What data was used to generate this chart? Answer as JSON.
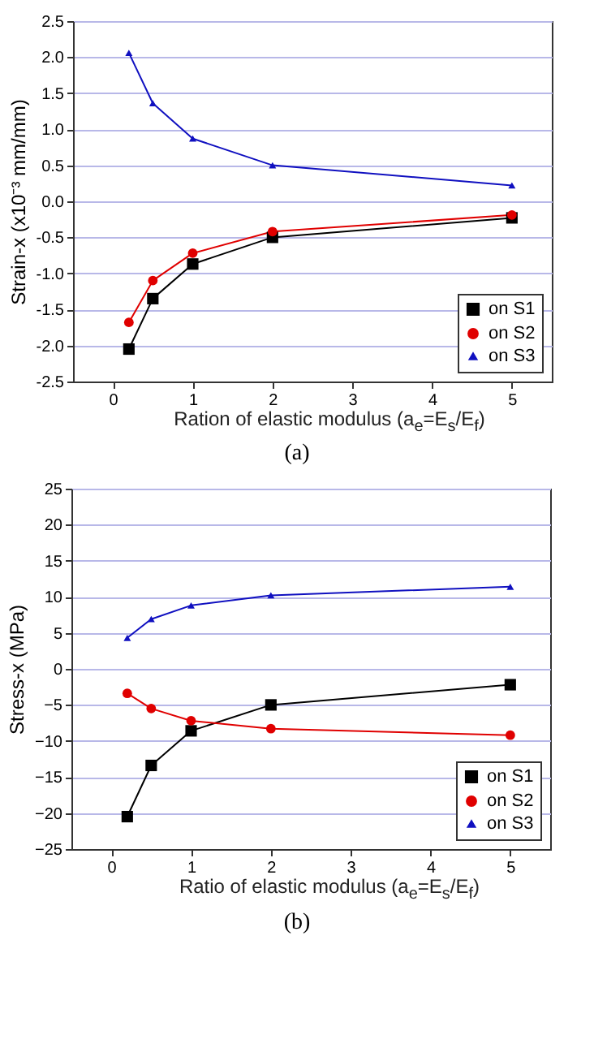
{
  "chart_data": [
    {
      "type": "line",
      "xlabel": "Ration of elastic modulus (a$_{e}$=E$_{s}$/E$_{f}$)",
      "ylabel": "Strain-x (x10⁻³ mm/mm)",
      "annotations": [
        "(a)"
      ],
      "x": [
        0.2,
        0.5,
        1,
        2,
        5
      ],
      "series": [
        {
          "name": "on S1",
          "color": "#000000",
          "marker": "square",
          "values": [
            -2.05,
            -1.35,
            -0.87,
            -0.5,
            -0.23
          ]
        },
        {
          "name": "on S2",
          "color": "#e00000",
          "marker": "circle",
          "values": [
            -1.68,
            -1.1,
            -0.72,
            -0.42,
            -0.19
          ]
        },
        {
          "name": "on S3",
          "color": "#1010c0",
          "marker": "triangle",
          "values": [
            2.06,
            1.36,
            0.87,
            0.5,
            0.22
          ]
        }
      ],
      "xlim": [
        -0.5,
        5.5
      ],
      "xticks": [
        0,
        1,
        2,
        3,
        4,
        5
      ],
      "ylim": [
        -2.5,
        2.5
      ],
      "yticks": [
        {
          "value": -2.5,
          "label": "-2.5"
        },
        {
          "value": -2,
          "label": "-2.0"
        },
        {
          "value": -1.5,
          "label": "-1.5"
        },
        {
          "value": -1,
          "label": "-1.0"
        },
        {
          "value": -0.5,
          "label": "-0.5"
        },
        {
          "value": 0,
          "label": "0.0"
        },
        {
          "value": 0.5,
          "label": "0.5"
        },
        {
          "value": 1,
          "label": "1.0"
        },
        {
          "value": 1.5,
          "label": "1.5"
        },
        {
          "value": 2,
          "label": "2.0"
        },
        {
          "value": 2.5,
          "label": "2.5"
        }
      ],
      "grid": "y",
      "legend": "bottom right"
    },
    {
      "type": "line",
      "xlabel": "Ratio of elastic modulus (a$_{e}$=E$_{s}$/E$_{f}$)",
      "ylabel": "Stress-x (MPa)",
      "annotations": [
        "(b)"
      ],
      "x": [
        0.2,
        0.5,
        1,
        2,
        5
      ],
      "series": [
        {
          "name": "on S1",
          "color": "#000000",
          "marker": "square",
          "values": [
            -20.5,
            -13.4,
            -8.6,
            -5.0,
            -2.2
          ]
        },
        {
          "name": "on S2",
          "color": "#e00000",
          "marker": "circle",
          "values": [
            -3.4,
            -5.5,
            -7.2,
            -8.3,
            -9.2
          ]
        },
        {
          "name": "on S3",
          "color": "#1010c0",
          "marker": "triangle",
          "values": [
            4.3,
            6.9,
            8.8,
            10.2,
            11.4
          ]
        }
      ],
      "xlim": [
        -0.5,
        5.5
      ],
      "xticks": [
        0,
        1,
        2,
        3,
        4,
        5
      ],
      "ylim": [
        -25,
        25
      ],
      "yticks": [
        -25,
        -20,
        -15,
        -10,
        -5,
        0,
        5,
        10,
        15,
        20,
        25
      ],
      "grid": "y",
      "legend": "bottom right"
    }
  ]
}
